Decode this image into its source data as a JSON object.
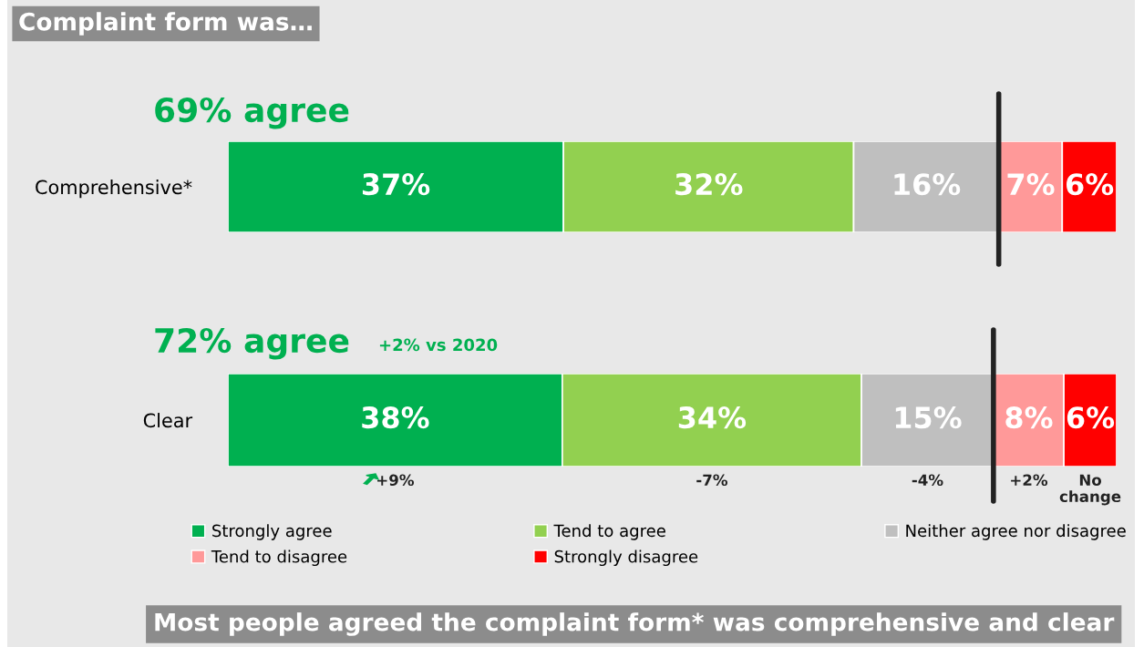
{
  "chart_data": [
    {
      "type": "bar",
      "orientation": "horizontal",
      "stacked": true,
      "title": "Complaint form was…",
      "subtitle": "69% agree",
      "categories": [
        "Comprehensive*"
      ],
      "legend": false,
      "series": [
        {
          "color": "#00b050",
          "values": [
            37
          ],
          "value_labels": [
            "37%"
          ]
        },
        {
          "color": "#92d050",
          "values": [
            32
          ],
          "value_labels": [
            "32%"
          ]
        },
        {
          "color": "#bfbfbf",
          "values": [
            16
          ],
          "value_labels": [
            "16%"
          ]
        },
        {
          "color": "#ff9999",
          "values": [
            7
          ],
          "value_labels": [
            "7%"
          ]
        },
        {
          "color": "#ff0000",
          "values": [
            6
          ],
          "value_labels": [
            "6%"
          ]
        }
      ],
      "ref_lines": [
        {
          "axis": "x",
          "value": 85,
          "color": "#222222"
        }
      ]
    },
    {
      "type": "bar",
      "orientation": "horizontal",
      "stacked": true,
      "title": "72% agree",
      "subtitle": "+2% vs 2020",
      "categories": [
        "Clear"
      ],
      "legend": "bottom",
      "series": [
        {
          "name": "Strongly agree",
          "color": "#00b050",
          "values": [
            38
          ],
          "value_labels": [
            "38%"
          ]
        },
        {
          "name": "Tend to agree",
          "color": "#92d050",
          "values": [
            34
          ],
          "value_labels": [
            "34%"
          ]
        },
        {
          "name": "Neither agree nor disagree",
          "color": "#bfbfbf",
          "values": [
            15
          ],
          "value_labels": [
            "15%"
          ]
        },
        {
          "name": "Tend to disagree",
          "color": "#ff9999",
          "values": [
            8
          ],
          "value_labels": [
            "8%"
          ]
        },
        {
          "name": "Strongly disagree",
          "color": "#ff0000",
          "values": [
            6
          ],
          "value_labels": [
            "6%"
          ]
        }
      ],
      "ref_lines": [
        {
          "axis": "x",
          "value": 87,
          "color": "#222222"
        }
      ],
      "annotations": [
        "+9%",
        "-7%",
        "-4%",
        "+2%",
        "No\nchange",
        "Most people agreed the complaint form* was comprehensive and clear"
      ]
    }
  ]
}
